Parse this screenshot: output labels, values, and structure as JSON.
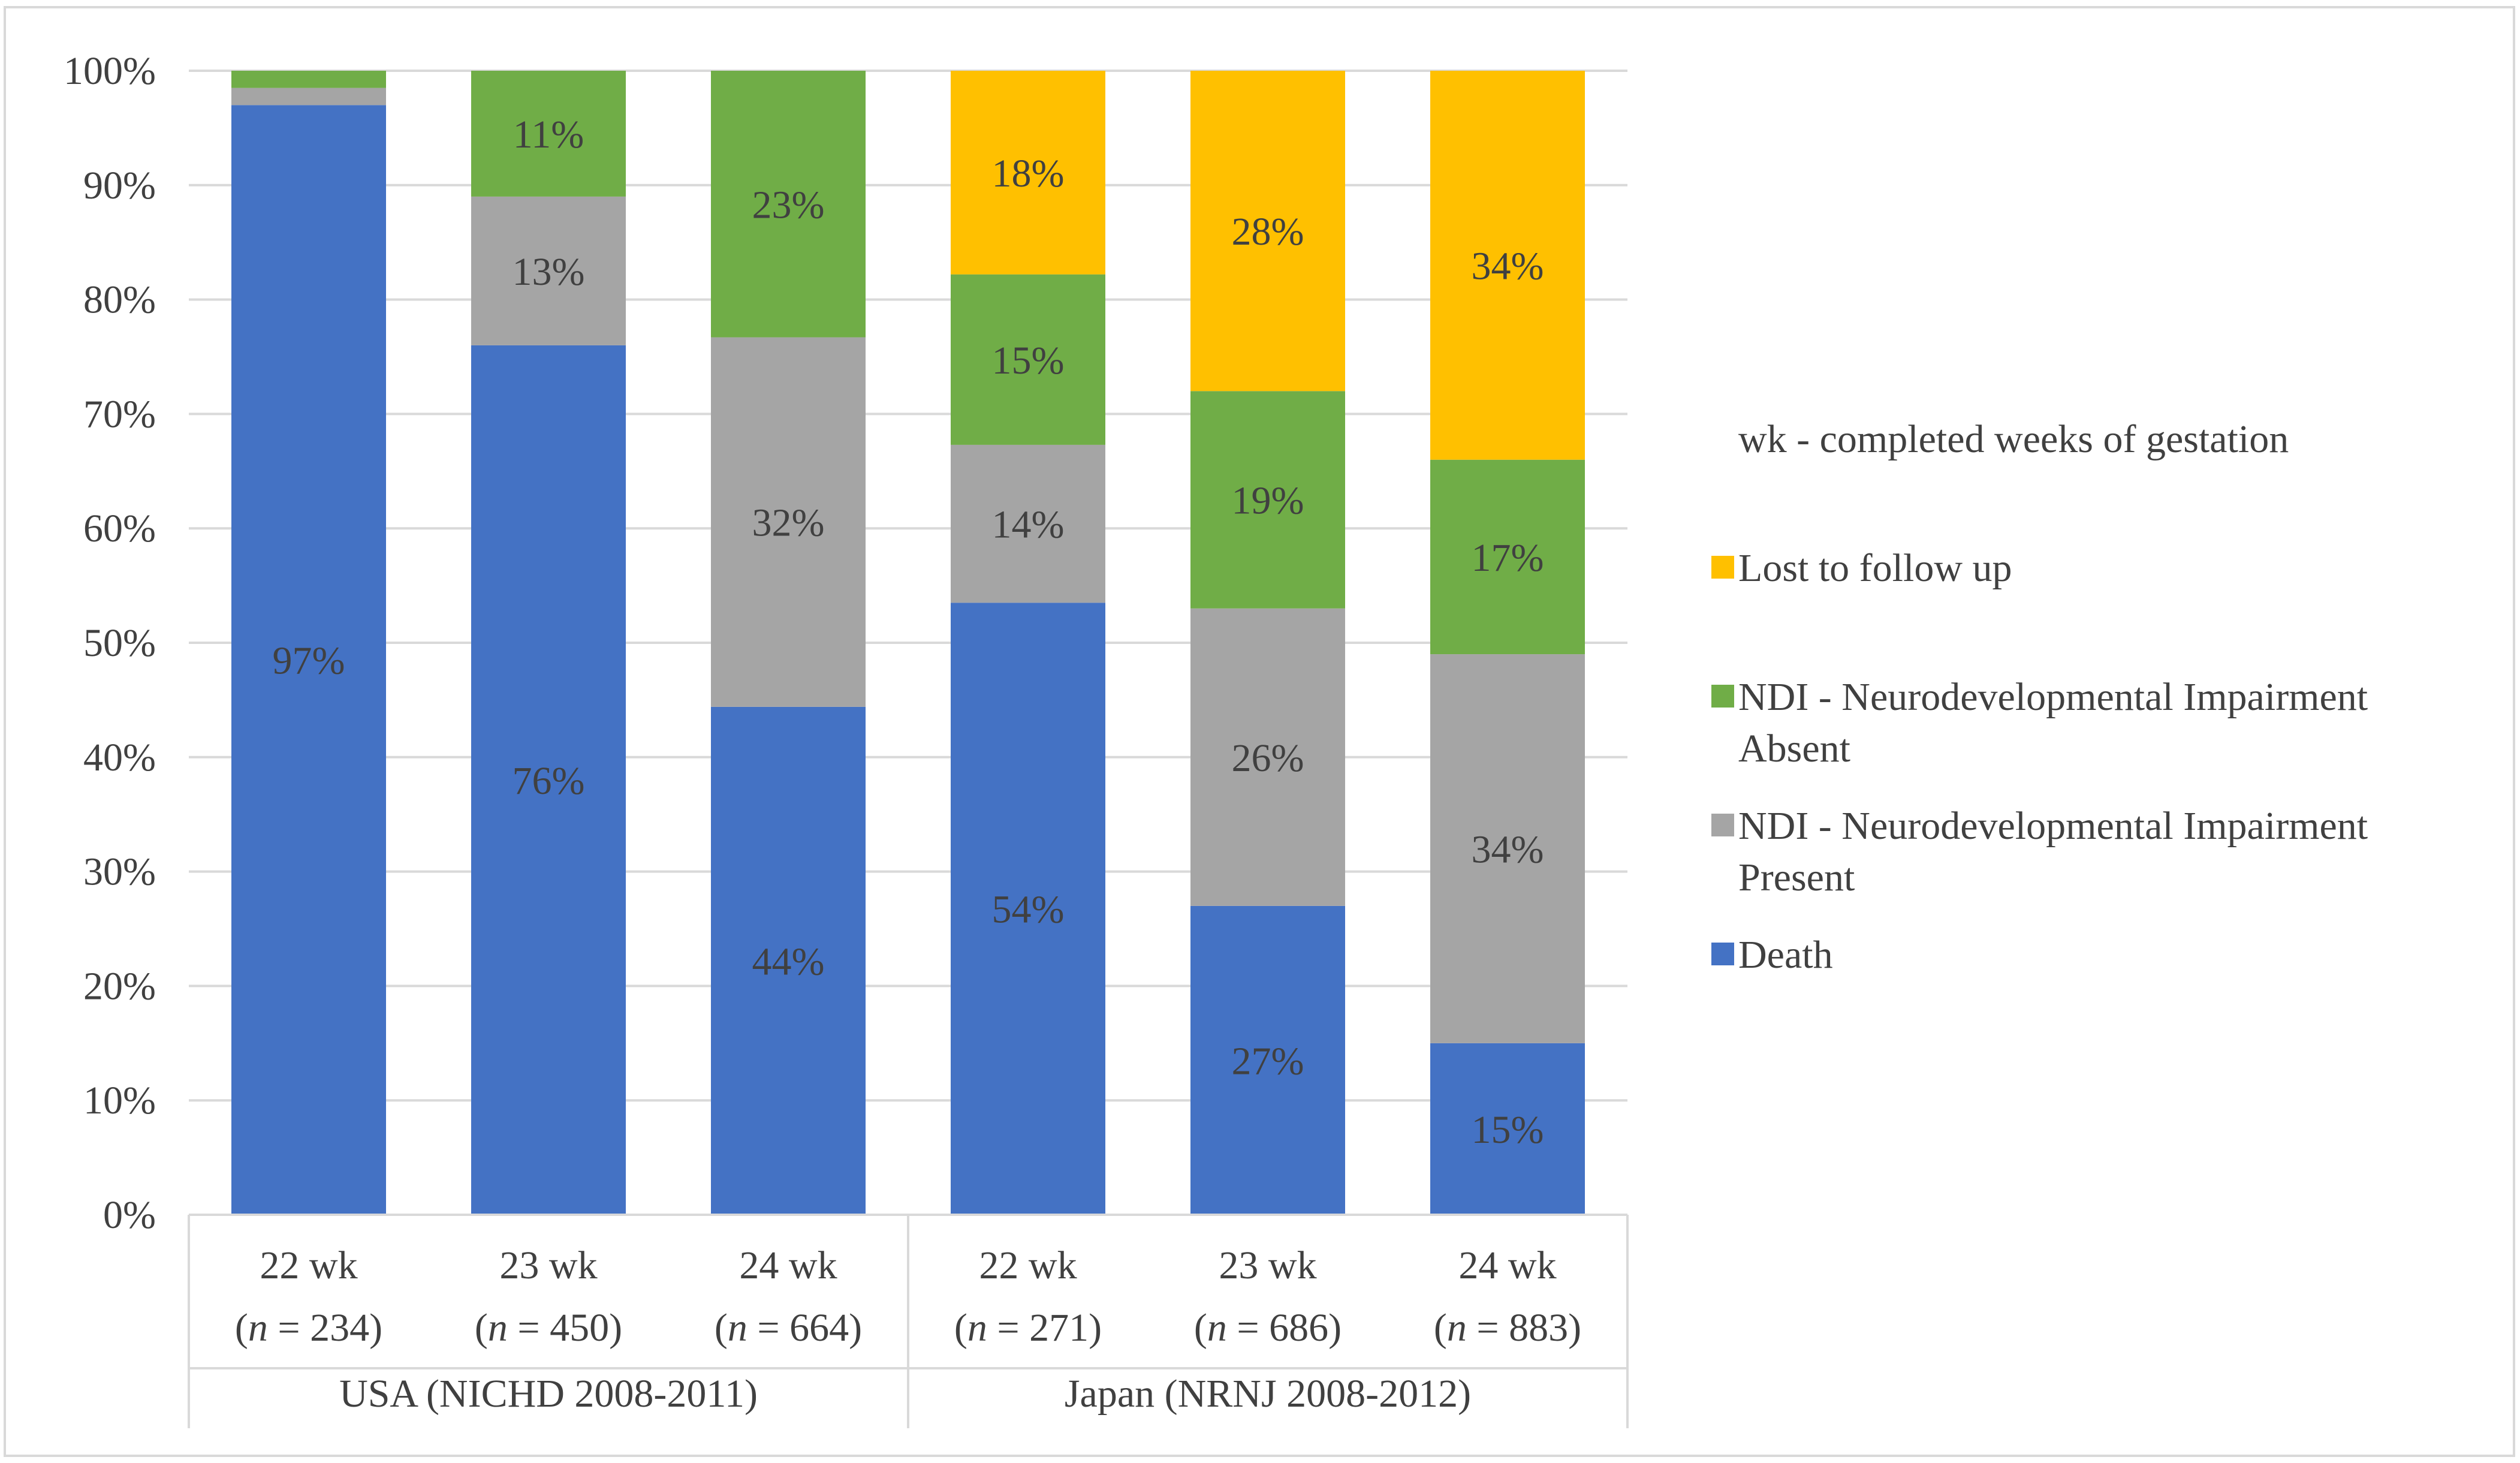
{
  "chart_data": {
    "type": "bar",
    "stacked": true,
    "percent_axis": true,
    "ylim": [
      0,
      100
    ],
    "yticks": [
      "0%",
      "10%",
      "20%",
      "30%",
      "40%",
      "50%",
      "60%",
      "70%",
      "80%",
      "90%",
      "100%"
    ],
    "categories": [
      {
        "label": "22 wk",
        "n_prefix": "(",
        "n_var": "n",
        "n_value": " = 234)",
        "group": "USA (NICHD 2008-2011)"
      },
      {
        "label": "23 wk",
        "n_prefix": "(",
        "n_var": "n",
        "n_value": " = 450)",
        "group": "USA (NICHD 2008-2011)"
      },
      {
        "label": "24 wk",
        "n_prefix": "(",
        "n_var": "n",
        "n_value": " = 664)",
        "group": "USA (NICHD 2008-2011)"
      },
      {
        "label": "22 wk",
        "n_prefix": "(",
        "n_var": "n",
        "n_value": " = 271)",
        "group": "Japan (NRNJ 2008-2012)"
      },
      {
        "label": "23 wk",
        "n_prefix": "(",
        "n_var": "n",
        "n_value": " = 686)",
        "group": "Japan (NRNJ 2008-2012)"
      },
      {
        "label": "24 wk",
        "n_prefix": "(",
        "n_var": "n",
        "n_value": " = 883)",
        "group": "Japan (NRNJ 2008-2012)"
      }
    ],
    "groups": [
      "USA (NICHD 2008-2011)",
      "Japan (NRNJ 2008-2012)"
    ],
    "series": [
      {
        "name": "Death",
        "color": "#4472c4",
        "values": [
          97,
          76,
          44.4,
          53.5,
          27,
          15
        ],
        "labels": [
          "97%",
          "76%",
          "44%",
          "54%",
          "27%",
          "15%"
        ]
      },
      {
        "name": "NDI - Neurodevelopmental Impairment Present",
        "color": "#a5a5a5",
        "values": [
          1.5,
          13,
          32.3,
          13.8,
          26,
          34
        ],
        "labels": [
          "",
          "13%",
          "32%",
          "14%",
          "26%",
          "34%"
        ]
      },
      {
        "name": "NDI - Neurodevelopmental Impairment Absent",
        "color": "#70ad47",
        "values": [
          1.5,
          11,
          23.3,
          14.9,
          19,
          17
        ],
        "labels": [
          "",
          "11%",
          "23%",
          "15%",
          "19%",
          "17%"
        ]
      },
      {
        "name": "Lost to follow up",
        "color": "#ffc000",
        "values": [
          0,
          0,
          0,
          17.8,
          28,
          34
        ],
        "labels": [
          "",
          "",
          "",
          "18%",
          "28%",
          "34%"
        ]
      }
    ],
    "legend": {
      "note": "wk - completed weeks of gestation",
      "items": [
        {
          "lines": [
            "Lost to follow up"
          ],
          "color": "#ffc000"
        },
        {
          "lines": [
            "NDI - Neurodevelopmental Impairment",
            "Absent"
          ],
          "color": "#70ad47"
        },
        {
          "lines": [
            "NDI - Neurodevelopmental Impairment",
            "Present"
          ],
          "color": "#a5a5a5"
        },
        {
          "lines": [
            "Death"
          ],
          "color": "#4472c4"
        }
      ],
      "position": "right"
    },
    "grid": true,
    "colors": {
      "gridline": "#d9d9d9",
      "text": "#404040"
    }
  }
}
